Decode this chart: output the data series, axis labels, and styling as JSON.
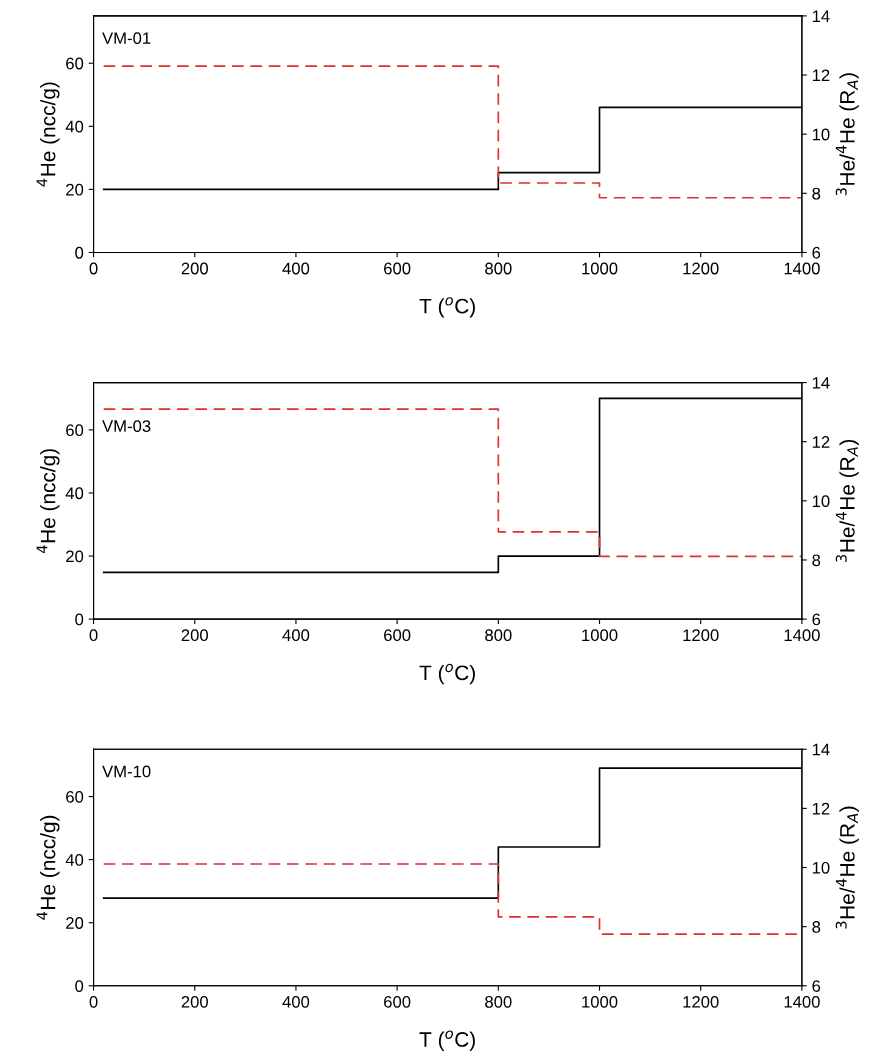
{
  "chart_data": [
    {
      "type": "step",
      "xlabel": "T ($^{o}$C)",
      "ylabel": "$^{4}$He (ncc/g)",
      "y2label": "$^{3}$He/$^{4}$He (R$_{A}$)",
      "annotations": [
        "VM-01"
      ],
      "x": [
        20,
        800,
        1000,
        1400
      ],
      "xlim": [
        0,
        1400
      ],
      "xticks": [
        0,
        200,
        400,
        600,
        800,
        1000,
        1200,
        1400
      ],
      "ylim": [
        0,
        75
      ],
      "yticks": [
        0,
        20,
        40,
        60
      ],
      "y2lim": [
        6,
        14
      ],
      "y2ticks": [
        6,
        8,
        10,
        12,
        14
      ],
      "grid": false,
      "series": [
        {
          "color": "#000000",
          "line_style": "solid",
          "values": [
            20,
            25.3,
            46,
            46
          ]
        },
        {
          "color": "#e03030",
          "line_style": "dashed",
          "axis": "y2",
          "values": [
            12.3,
            8.35,
            7.85,
            7.85
          ]
        }
      ]
    },
    {
      "type": "step",
      "xlabel": "T ($^{o}$C)",
      "ylabel": "$^{4}$He (ncc/g)",
      "y2label": "$^{3}$He/$^{4}$He (R$_{A}$)",
      "annotations": [
        "VM-03"
      ],
      "x": [
        20,
        800,
        1000,
        1400
      ],
      "xlim": [
        0,
        1400
      ],
      "xticks": [
        0,
        200,
        400,
        600,
        800,
        1000,
        1200,
        1400
      ],
      "ylim": [
        0,
        75
      ],
      "yticks": [
        0,
        20,
        40,
        60
      ],
      "y2lim": [
        6,
        14
      ],
      "y2ticks": [
        6,
        8,
        10,
        12,
        14
      ],
      "grid": false,
      "series": [
        {
          "color": "#000000",
          "line_style": "solid",
          "values": [
            14.8,
            20,
            70,
            70
          ]
        },
        {
          "color": "#e03030",
          "line_style": "dashed",
          "axis": "y2",
          "values": [
            13.1,
            8.95,
            8.12,
            8.12
          ]
        }
      ]
    },
    {
      "type": "step",
      "xlabel": "T ($^{o}$C)",
      "ylabel": "$^{4}$He (ncc/g)",
      "y2label": "$^{3}$He/$^{4}$He (R$_{A}$)",
      "annotations": [
        "VM-10"
      ],
      "x": [
        20,
        800,
        1000,
        1400
      ],
      "xlim": [
        0,
        1400
      ],
      "xticks": [
        0,
        200,
        400,
        600,
        800,
        1000,
        1200,
        1400
      ],
      "ylim": [
        0,
        75
      ],
      "yticks": [
        0,
        20,
        40,
        60
      ],
      "y2lim": [
        6,
        14
      ],
      "y2ticks": [
        6,
        8,
        10,
        12,
        14
      ],
      "grid": false,
      "series": [
        {
          "color": "#000000",
          "line_style": "solid",
          "values": [
            27.8,
            44,
            69,
            69
          ]
        },
        {
          "color": "#e03030",
          "line_style": "dashed",
          "axis": "y2",
          "values": [
            10.12,
            8.33,
            7.75,
            7.75
          ]
        }
      ]
    }
  ]
}
